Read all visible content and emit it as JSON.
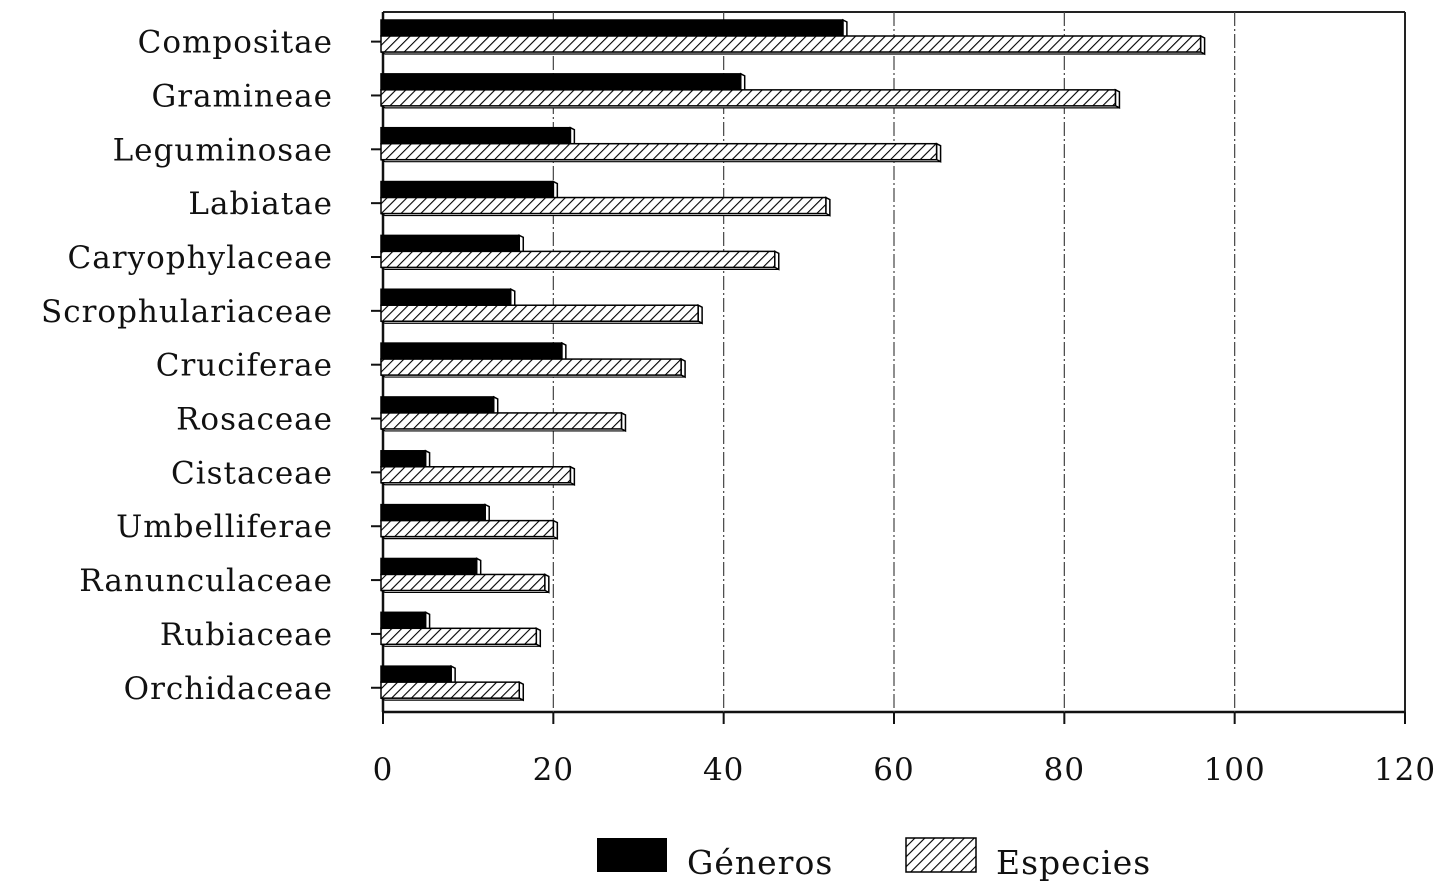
{
  "chart_data": {
    "type": "bar",
    "orientation": "horizontal",
    "categories": [
      "Compositae",
      "Gramineae",
      "Leguminosae",
      "Labiatae",
      "Caryophylaceae",
      "Scrophulariaceae",
      "Cruciferae",
      "Rosaceae",
      "Cistaceae",
      "Umbelliferae",
      "Ranunculaceae",
      "Rubiaceae",
      "Orchidaceae"
    ],
    "series": [
      {
        "name": "Géneros",
        "fill": "solid",
        "color": "#000000",
        "values": [
          54,
          42,
          22,
          20,
          16,
          15,
          21,
          13,
          5,
          12,
          11,
          5,
          8
        ]
      },
      {
        "name": "Especies",
        "fill": "hatched",
        "color": "#000000",
        "values": [
          96,
          86,
          65,
          52,
          46,
          37,
          35,
          28,
          22,
          20,
          19,
          18,
          16
        ]
      }
    ],
    "xlim": [
      0,
      120
    ],
    "xticks": [
      "0",
      "20",
      "40",
      "60",
      "80",
      "100",
      "120"
    ],
    "grid": "vertical",
    "legend_position": "bottom",
    "title": "",
    "xlabel": "",
    "ylabel": ""
  }
}
